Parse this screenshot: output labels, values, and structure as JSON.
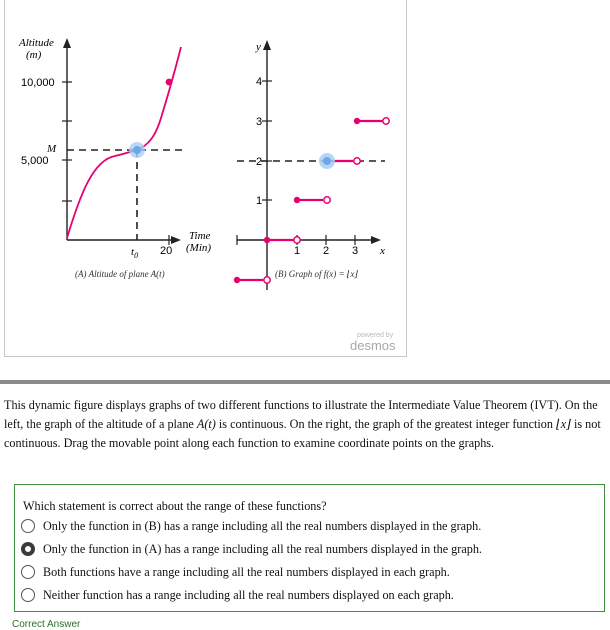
{
  "graph_a": {
    "y_axis_label_line1": "Altitude",
    "y_axis_label_line2": "(m)",
    "y_tick_high": "10,000",
    "y_tick_mid": "5,000",
    "y_marker": "M",
    "x_label_line1": "Time",
    "x_label_line2": "(Min)",
    "x_marker": "t",
    "x_marker_sub": "0",
    "x_tick": "20",
    "caption": "(A) Altitude of plane A(t)"
  },
  "graph_b": {
    "y_axis_label": "y",
    "x_axis_label": "x",
    "y_ticks": [
      "1",
      "2",
      "3",
      "4"
    ],
    "x_ticks": [
      "1",
      "2",
      "3"
    ],
    "caption": "(B) Graph of f(x) = ⌊x⌋"
  },
  "watermark": {
    "small": "powered by",
    "brand": "desmos"
  },
  "description": {
    "part1": "This dynamic figure displays graphs of two different functions to illustrate the Intermediate Value Theorem (IVT). On the left, the graph of the altitude of a plane ",
    "func_a": "A(t)",
    "part2": " is continuous. On the right, the graph of the greatest integer function ",
    "func_b": "⌊x⌋",
    "part3": " is not continuous. Drag the movable point along each function to examine coordinate points on the graphs."
  },
  "question": {
    "text": "Which statement is correct about the range of these functions?",
    "options": [
      {
        "label": "Only the function in (B) has a range including all the real numbers displayed in the graph.",
        "selected": false
      },
      {
        "label": "Only the function in (A) has a range including all the real numbers displayed in the graph.",
        "selected": true
      },
      {
        "label": "Both functions have a range including all the real numbers displayed in each graph.",
        "selected": false
      },
      {
        "label": "Neither function has a range including all the real numbers displayed on each graph.",
        "selected": false
      }
    ]
  },
  "feedback": "Correct Answer",
  "colors": {
    "curve": "#e8006f",
    "movable_point": "#7fb6f0",
    "axis": "#222222",
    "frame_border": "#c8c8c8",
    "question_border": "#3e8e3e",
    "feedback_text": "#2c6e2c"
  }
}
